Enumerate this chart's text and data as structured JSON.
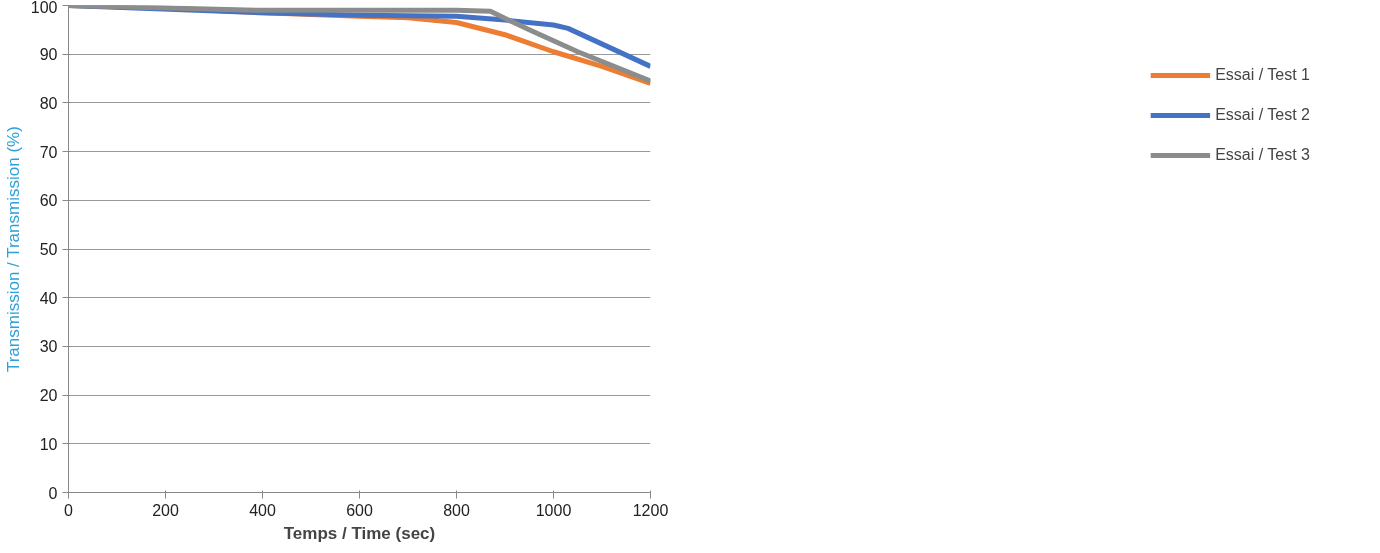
{
  "chart_data": {
    "type": "line",
    "xlabel": "Temps / Time (sec)",
    "ylabel": "Transmission / Transmission (%)",
    "xlim": [
      0,
      1200
    ],
    "xticks": [
      0,
      200,
      400,
      600,
      800,
      1000,
      1200
    ],
    "ylim": [
      0,
      100
    ],
    "yticks": [
      0,
      10,
      20,
      30,
      40,
      50,
      60,
      70,
      80,
      90,
      100
    ],
    "grid": "y",
    "legend": "right",
    "marker": "none",
    "line_style": "solid",
    "series": [
      {
        "name": "Essai / Test 1",
        "color": "#ed7d31",
        "x": [
          0,
          200,
          400,
          600,
          700,
          800,
          900,
          1000,
          1100,
          1200
        ],
        "values": [
          100,
          99.5,
          98.5,
          97.8,
          97.5,
          96.5,
          94,
          90.5,
          87.5,
          84
        ]
      },
      {
        "name": "Essai / Test 2",
        "color": "#4472c4",
        "x": [
          0,
          400,
          600,
          800,
          900,
          1000,
          1030,
          1200
        ],
        "values": [
          100,
          98.5,
          98,
          97.8,
          97,
          96,
          95.3,
          87.5
        ]
      },
      {
        "name": "Essai / Test 3",
        "color": "#8c8c8c",
        "x": [
          0,
          400,
          800,
          870,
          950,
          1050,
          1200
        ],
        "values": [
          100,
          99,
          99,
          98.8,
          95,
          90.5,
          84.5
        ]
      }
    ]
  }
}
